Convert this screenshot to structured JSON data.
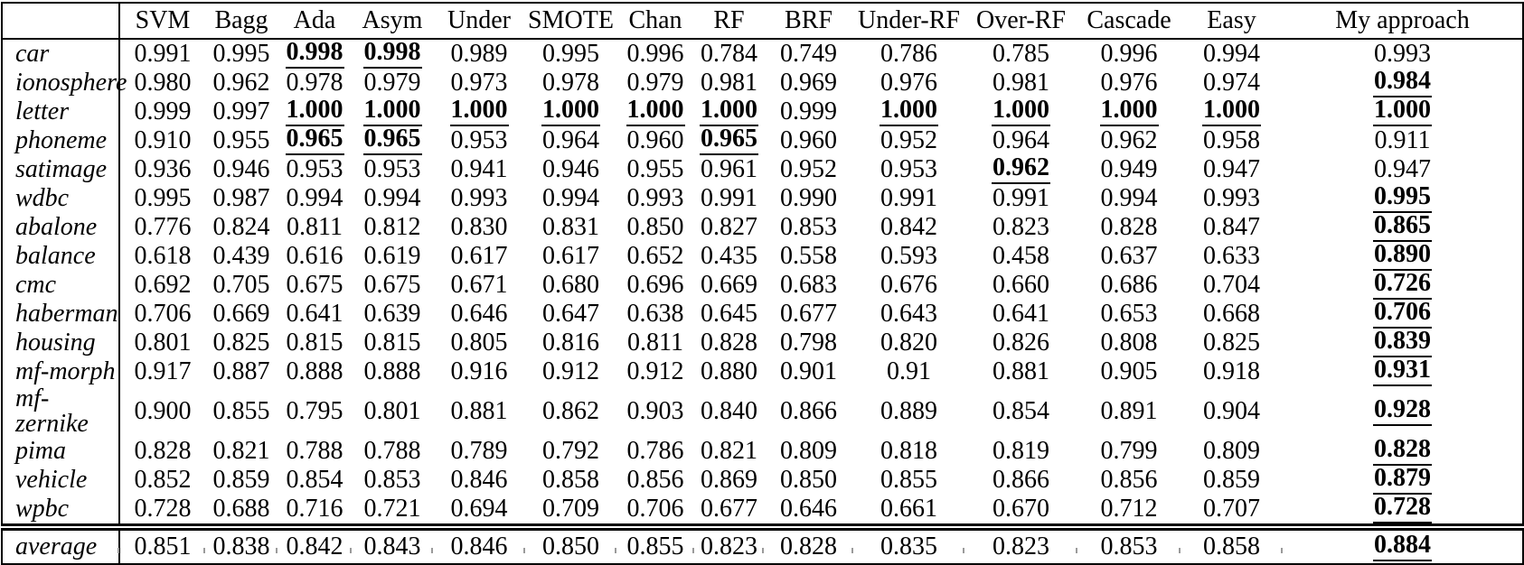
{
  "table": {
    "corner_label": "",
    "columns": [
      "SVM",
      "Bagg",
      "Ada",
      "Asym",
      "Under",
      "SMOTE",
      "Chan",
      "RF",
      "BRF",
      "Under-RF",
      "Over-RF",
      "Cascade",
      "Easy",
      "My approach"
    ],
    "rows": [
      {
        "label": "car",
        "values": [
          "0.991",
          "0.995",
          "0.998",
          "0.998",
          "0.989",
          "0.995",
          "0.996",
          "0.784",
          "0.749",
          "0.786",
          "0.785",
          "0.996",
          "0.994",
          "0.993"
        ],
        "best": [
          2,
          3
        ]
      },
      {
        "label": "ionosphere",
        "values": [
          "0.980",
          "0.962",
          "0.978",
          "0.979",
          "0.973",
          "0.978",
          "0.979",
          "0.981",
          "0.969",
          "0.976",
          "0.981",
          "0.976",
          "0.974",
          "0.984"
        ],
        "best": [
          13
        ]
      },
      {
        "label": "letter",
        "values": [
          "0.999",
          "0.997",
          "1.000",
          "1.000",
          "1.000",
          "1.000",
          "1.000",
          "1.000",
          "0.999",
          "1.000",
          "1.000",
          "1.000",
          "1.000",
          "1.000"
        ],
        "best": [
          2,
          3,
          4,
          5,
          6,
          7,
          9,
          10,
          11,
          12,
          13
        ]
      },
      {
        "label": "phoneme",
        "values": [
          "0.910",
          "0.955",
          "0.965",
          "0.965",
          "0.953",
          "0.964",
          "0.960",
          "0.965",
          "0.960",
          "0.952",
          "0.964",
          "0.962",
          "0.958",
          "0.911"
        ],
        "best": [
          2,
          3,
          7
        ]
      },
      {
        "label": "satimage",
        "values": [
          "0.936",
          "0.946",
          "0.953",
          "0.953",
          "0.941",
          "0.946",
          "0.955",
          "0.961",
          "0.952",
          "0.953",
          "0.962",
          "0.949",
          "0.947",
          "0.947"
        ],
        "best": [
          10
        ]
      },
      {
        "label": "wdbc",
        "values": [
          "0.995",
          "0.987",
          "0.994",
          "0.994",
          "0.993",
          "0.994",
          "0.993",
          "0.991",
          "0.990",
          "0.991",
          "0.991",
          "0.994",
          "0.993",
          "0.995"
        ],
        "best": [
          13
        ]
      },
      {
        "label": "abalone",
        "values": [
          "0.776",
          "0.824",
          "0.811",
          "0.812",
          "0.830",
          "0.831",
          "0.850",
          "0.827",
          "0.853",
          "0.842",
          "0.823",
          "0.828",
          "0.847",
          "0.865"
        ],
        "best": [
          13
        ]
      },
      {
        "label": "balance",
        "values": [
          "0.618",
          "0.439",
          "0.616",
          "0.619",
          "0.617",
          "0.617",
          "0.652",
          "0.435",
          "0.558",
          "0.593",
          "0.458",
          "0.637",
          "0.633",
          "0.890"
        ],
        "best": [
          13
        ]
      },
      {
        "label": "cmc",
        "values": [
          "0.692",
          "0.705",
          "0.675",
          "0.675",
          "0.671",
          "0.680",
          "0.696",
          "0.669",
          "0.683",
          "0.676",
          "0.660",
          "0.686",
          "0.704",
          "0.726"
        ],
        "best": [
          13
        ]
      },
      {
        "label": "haberman",
        "values": [
          "0.706",
          "0.669",
          "0.641",
          "0.639",
          "0.646",
          "0.647",
          "0.638",
          "0.645",
          "0.677",
          "0.643",
          "0.641",
          "0.653",
          "0.668",
          "0.706"
        ],
        "best": [
          13
        ]
      },
      {
        "label": "housing",
        "values": [
          "0.801",
          "0.825",
          "0.815",
          "0.815",
          "0.805",
          "0.816",
          "0.811",
          "0.828",
          "0.798",
          "0.820",
          "0.826",
          "0.808",
          "0.825",
          "0.839"
        ],
        "best": [
          13
        ]
      },
      {
        "label": "mf-morph",
        "values": [
          "0.917",
          "0.887",
          "0.888",
          "0.888",
          "0.916",
          "0.912",
          "0.912",
          "0.880",
          "0.901",
          "0.91",
          "0.881",
          "0.905",
          "0.918",
          "0.931"
        ],
        "best": [
          13
        ]
      },
      {
        "label": "mf-zernike",
        "values": [
          "0.900",
          "0.855",
          "0.795",
          "0.801",
          "0.881",
          "0.862",
          "0.903",
          "0.840",
          "0.866",
          "0.889",
          "0.854",
          "0.891",
          "0.904",
          "0.928"
        ],
        "best": [
          13
        ]
      },
      {
        "label": "pima",
        "values": [
          "0.828",
          "0.821",
          "0.788",
          "0.788",
          "0.789",
          "0.792",
          "0.786",
          "0.821",
          "0.809",
          "0.818",
          "0.819",
          "0.799",
          "0.809",
          "0.828"
        ],
        "best": [
          13
        ]
      },
      {
        "label": "vehicle",
        "values": [
          "0.852",
          "0.859",
          "0.854",
          "0.853",
          "0.846",
          "0.858",
          "0.856",
          "0.869",
          "0.850",
          "0.855",
          "0.866",
          "0.856",
          "0.859",
          "0.879"
        ],
        "best": [
          13
        ]
      },
      {
        "label": "wpbc",
        "values": [
          "0.728",
          "0.688",
          "0.716",
          "0.721",
          "0.694",
          "0.709",
          "0.706",
          "0.677",
          "0.646",
          "0.661",
          "0.670",
          "0.712",
          "0.707",
          "0.728"
        ],
        "best": [
          13
        ]
      }
    ],
    "footer_row": {
      "label": "average",
      "values": [
        "0.851",
        "0.838",
        "0.842",
        "0.843",
        "0.846",
        "0.850",
        "0.855",
        "0.823",
        "0.828",
        "0.835",
        "0.823",
        "0.853",
        "0.858",
        "0.884"
      ],
      "best": [
        13
      ]
    }
  },
  "colors": {
    "border": "#000000",
    "text": "#000000",
    "background": "#ffffff",
    "tick": "#9a9a9a"
  }
}
